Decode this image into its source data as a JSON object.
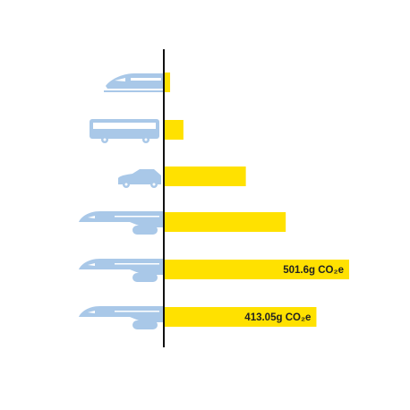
{
  "chart_data": {
    "type": "bar",
    "orientation": "horizontal",
    "categories": [
      null,
      null,
      null,
      null,
      null,
      null
    ],
    "values": [
      17,
      53,
      222,
      330,
      501.6,
      413.05
    ],
    "value_labels": [
      null,
      null,
      null,
      null,
      "501.6g CO₂e",
      "413.05g CO₂e"
    ],
    "color": "#ffe100"
  }
}
